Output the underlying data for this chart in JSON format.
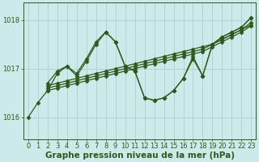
{
  "title": "Graphe pression niveau de la mer (hPa)",
  "bg_color": "#cceaea",
  "grid_color": "#aed4d4",
  "line_color": "#2d5a1b",
  "xlim": [
    -0.5,
    23.5
  ],
  "ylim": [
    1015.55,
    1018.35
  ],
  "yticks": [
    1016,
    1017,
    1018
  ],
  "xticks": [
    0,
    1,
    2,
    3,
    4,
    5,
    6,
    7,
    8,
    9,
    10,
    11,
    12,
    13,
    14,
    15,
    16,
    17,
    18,
    19,
    20,
    21,
    22,
    23
  ],
  "lines": [
    {
      "x": [
        0,
        1,
        2,
        3,
        4,
        5,
        6,
        7,
        8,
        9,
        10,
        11,
        12,
        13,
        14,
        15,
        16,
        17,
        18,
        19,
        20,
        21,
        22,
        23
      ],
      "y": [
        1016.0,
        1016.3,
        1016.55,
        1016.9,
        1017.05,
        1016.85,
        1017.15,
        1017.5,
        1017.75,
        1017.55,
        1017.05,
        1016.95,
        1016.4,
        1016.35,
        1016.4,
        1016.55,
        1016.8,
        1017.2,
        1016.85,
        1017.5,
        1017.65,
        1017.75,
        1017.85,
        1018.05
      ]
    },
    {
      "x": [
        2,
        3,
        4,
        5,
        6,
        7,
        8,
        9,
        10,
        11,
        12,
        13,
        14,
        15,
        16,
        17,
        18,
        19,
        20,
        21,
        22,
        23
      ],
      "y": [
        1016.65,
        1016.7,
        1016.75,
        1016.8,
        1016.85,
        1016.9,
        1016.95,
        1017.0,
        1017.05,
        1017.1,
        1017.15,
        1017.2,
        1017.25,
        1017.3,
        1017.35,
        1017.4,
        1017.45,
        1017.5,
        1017.6,
        1017.7,
        1017.8,
        1017.95
      ]
    },
    {
      "x": [
        2,
        3,
        4,
        5,
        6,
        7,
        8,
        9,
        10,
        11,
        12,
        13,
        14,
        15,
        16,
        17,
        18,
        19,
        20,
        21,
        22,
        23
      ],
      "y": [
        1016.6,
        1016.65,
        1016.7,
        1016.75,
        1016.8,
        1016.85,
        1016.9,
        1016.95,
        1017.0,
        1017.05,
        1017.1,
        1017.15,
        1017.2,
        1017.25,
        1017.3,
        1017.35,
        1017.4,
        1017.5,
        1017.6,
        1017.7,
        1017.8,
        1017.9
      ]
    },
    {
      "x": [
        2,
        3,
        4,
        5,
        6,
        7,
        8,
        9,
        10,
        11,
        12,
        13,
        14,
        15,
        16,
        17,
        18,
        19,
        20,
        21,
        22,
        23
      ],
      "y": [
        1016.55,
        1016.6,
        1016.65,
        1016.7,
        1016.75,
        1016.8,
        1016.85,
        1016.9,
        1016.95,
        1017.0,
        1017.05,
        1017.1,
        1017.15,
        1017.2,
        1017.25,
        1017.3,
        1017.35,
        1017.45,
        1017.55,
        1017.65,
        1017.75,
        1017.88
      ]
    },
    {
      "x": [
        2,
        3,
        4,
        5,
        6,
        7,
        8,
        9,
        10,
        11,
        12,
        13,
        14,
        15,
        16,
        17,
        18,
        19,
        20,
        21,
        22,
        23
      ],
      "y": [
        1016.7,
        1016.95,
        1017.05,
        1016.9,
        1017.2,
        1017.55,
        1017.75,
        1017.55,
        1017.05,
        1016.95,
        1016.4,
        1016.35,
        1016.4,
        1016.55,
        1016.8,
        1017.25,
        1016.85,
        1017.5,
        1017.65,
        1017.75,
        1017.85,
        1018.05
      ]
    }
  ],
  "marker": "D",
  "markersize": 2.5,
  "linewidth": 0.9,
  "xlabel_fontsize": 7.5,
  "tick_fontsize": 6.0,
  "tick_color": "#2d5a1b"
}
